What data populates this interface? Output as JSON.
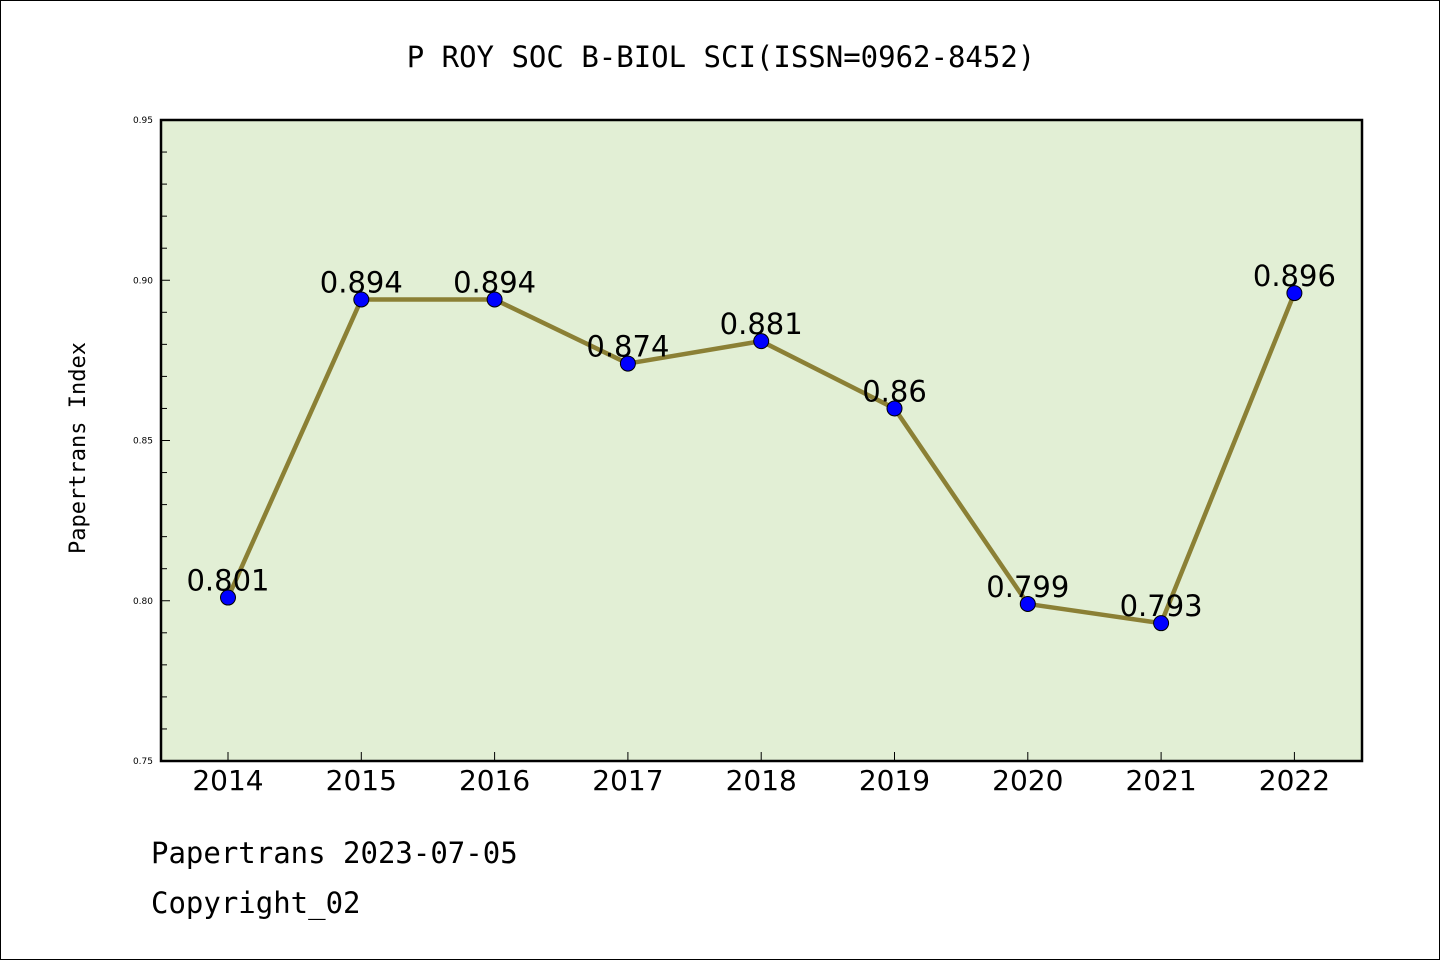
{
  "footer": {
    "source_line": "Papertrans 2023-07-05",
    "copyright_line": "Copyright_02"
  },
  "chart_data": {
    "type": "line",
    "title": "P ROY SOC B-BIOL SCI(ISSN=0962-8452)",
    "xlabel": "",
    "ylabel": "Papertrans Index",
    "categories": [
      "2014",
      "2015",
      "2016",
      "2017",
      "2018",
      "2019",
      "2020",
      "2021",
      "2022"
    ],
    "series": [
      {
        "values": [
          0.801,
          0.894,
          0.894,
          0.874,
          0.881,
          0.86,
          0.799,
          0.793,
          0.896
        ]
      }
    ],
    "data_labels": [
      "0.801",
      "0.894",
      "0.894",
      "0.874",
      "0.881",
      "0.86",
      "0.799",
      "0.793",
      "0.896"
    ],
    "ylim": [
      0.75,
      0.95
    ],
    "yticks": [
      0.75,
      0.8,
      0.85,
      0.9,
      0.95
    ],
    "ytick_labels": [
      "0.75",
      "0.80",
      "0.85",
      "0.90",
      "0.95"
    ],
    "grid": false,
    "colors": {
      "plot_background": "#e2efd5",
      "line": "#8b8035",
      "marker": "#0000ff"
    }
  }
}
